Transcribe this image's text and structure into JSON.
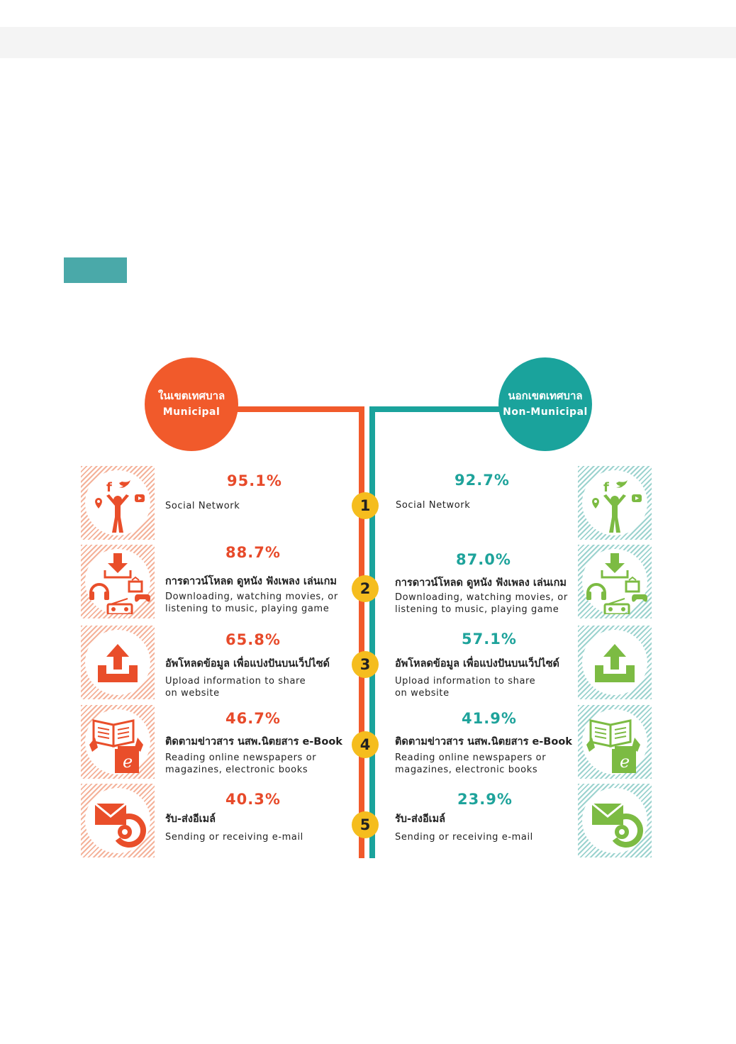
{
  "colors": {
    "municipal": "#f15a2b",
    "non_municipal": "#1aa39c",
    "rank_badge": "#f5bd1e",
    "icon_left": "#e94e2a",
    "icon_right": "#7cbb43"
  },
  "chart_data": {
    "type": "table",
    "series": [
      {
        "name_th": "ในเขตเทศบาล",
        "name": "Municipal",
        "values": [
          95.1,
          88.7,
          65.8,
          46.7,
          40.3
        ],
        "labels": [
          "95.1%",
          "88.7%",
          "65.8%",
          "46.7%",
          "40.3%"
        ]
      },
      {
        "name_th": "นอกเขตเทศบาล",
        "name": "Non-Municipal",
        "values": [
          92.7,
          87.0,
          57.1,
          41.9,
          23.9
        ],
        "labels": [
          "92.7%",
          "87.0%",
          "57.1%",
          "41.9%",
          "23.9%"
        ]
      }
    ],
    "categories": [
      {
        "rank": "1",
        "th": "",
        "en": [
          "Social Network"
        ],
        "icon": "social-network-icon"
      },
      {
        "rank": "2",
        "th": "การดาวน์โหลด ดูหนัง ฟังเพลง เล่นเกม",
        "en": [
          "Downloading, watching movies, or",
          "listening to music, playing game"
        ],
        "icon": "download-entertainment-icon"
      },
      {
        "rank": "3",
        "th": "อัพโหลดข้อมูล เพื่อแบ่งปันบนเว็ปไซด์",
        "en": [
          "Upload information to share",
          "on website"
        ],
        "icon": "upload-icon"
      },
      {
        "rank": "4",
        "th": "ติดตามข่าวสาร นสพ.นิตยสาร e-Book",
        "en": [
          "Reading online newspapers or",
          "magazines, electronic books"
        ],
        "icon": "ebook-reading-icon"
      },
      {
        "rank": "5",
        "th": "รับ-ส่งอีเมล์",
        "en": [
          "Sending or receiving e-mail"
        ],
        "icon": "email-icon"
      }
    ]
  }
}
